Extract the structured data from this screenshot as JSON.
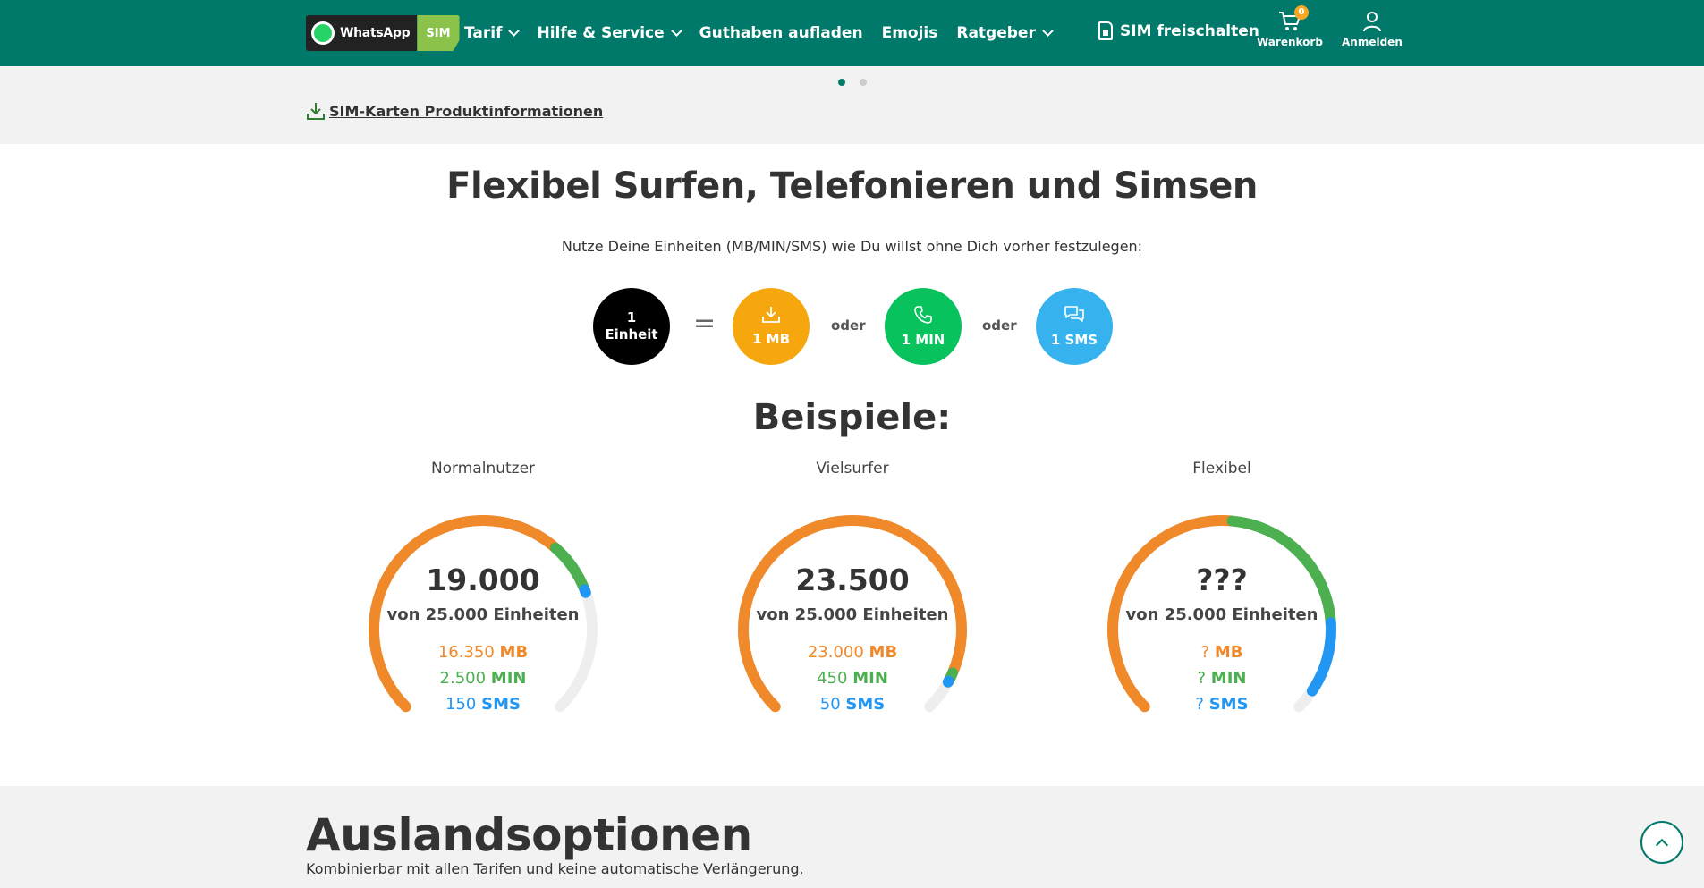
{
  "header": {
    "logo_text": "WhatsApp",
    "logo_sim": "SIM",
    "nav": [
      {
        "label": "Tarif",
        "dropdown": true
      },
      {
        "label": "Hilfe & Service",
        "dropdown": true
      },
      {
        "label": "Guthaben aufladen",
        "dropdown": false
      },
      {
        "label": "Emojis",
        "dropdown": false
      },
      {
        "label": "Ratgeber",
        "dropdown": true
      }
    ],
    "unlock_label": "SIM freischalten",
    "cart_label": "Warenkorb",
    "cart_count": "0",
    "login_label": "Anmelden",
    "bg_color": "#00796b"
  },
  "carousel": {
    "active": 0,
    "count": 2
  },
  "product_info_link": "SIM-Karten Produktinformationen",
  "intro": {
    "title": "Flexibel Surfen, Telefonieren und Simsen",
    "subtitle": "Nutze Deine Einheiten (MB/MIN/SMS) wie Du willst ohne Dich vorher festzulegen:"
  },
  "units": {
    "unit_line1": "1",
    "unit_line2": "Einheit",
    "equals": "=",
    "or": "oder",
    "mb_label": "1 MB",
    "min_label": "1 MIN",
    "sms_label": "1 SMS",
    "colors": {
      "unit": "#000000",
      "mb": "#f5a70d",
      "min": "#08c25e",
      "sms": "#36b3ee"
    }
  },
  "examples": {
    "title": "Beispiele:",
    "total": 25000,
    "items": [
      {
        "name": "Normalnutzer",
        "value": "19.000",
        "of": "von 25.000 Einheiten",
        "mb": "16.350",
        "min": "2.500",
        "sms": "150",
        "mb_units": 16350,
        "min_units": 2500,
        "sms_units": 150
      },
      {
        "name": "Vielsurfer",
        "value": "23.500",
        "of": "von 25.000 Einheiten",
        "mb": "23.000",
        "min": "450",
        "sms": "50",
        "mb_units": 23000,
        "min_units": 450,
        "sms_units": 50
      },
      {
        "name": "Flexibel",
        "value": "???",
        "of": "von 25.000 Einheiten",
        "mb": "?",
        "min": "?",
        "sms": "?",
        "mb_units": 13000,
        "min_units": 7500,
        "sms_units": 3500
      }
    ],
    "unit_mb": "MB",
    "unit_min": "MIN",
    "unit_sms": "SMS",
    "colors": {
      "mb": "#f0892a",
      "min": "#4caf50",
      "sms": "#2196f3",
      "track": "#eeeeee"
    }
  },
  "ausland": {
    "title": "Auslandsoptionen",
    "subtitle": "Kombinierbar mit allen Tarifen und keine automatische Verlängerung."
  }
}
